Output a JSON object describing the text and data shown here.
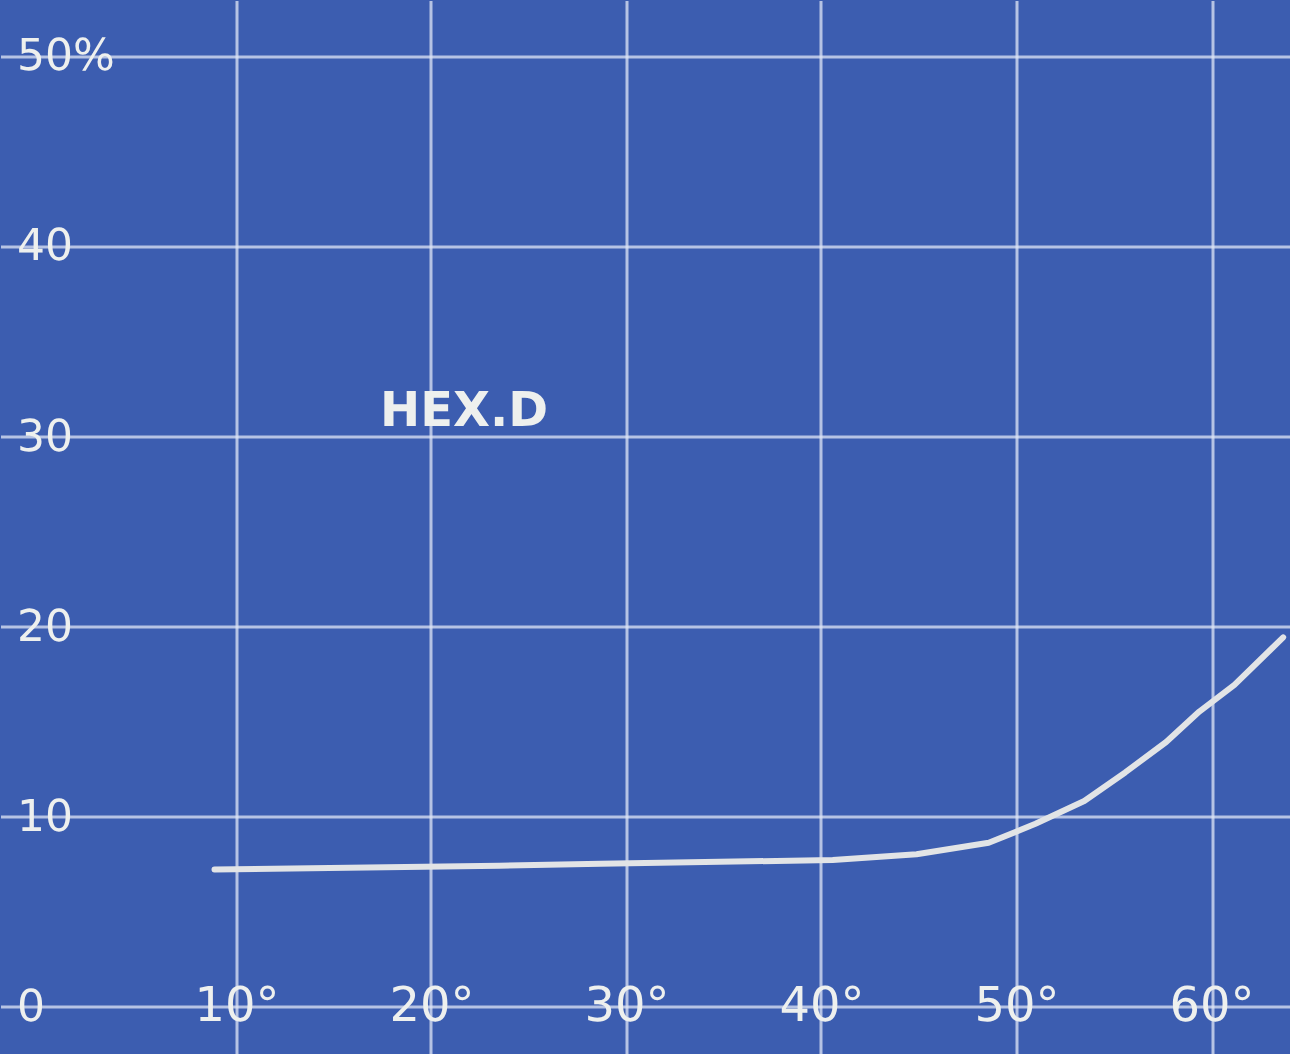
{
  "chart_data": {
    "type": "line",
    "x": [
      8.9,
      23.5,
      28.7,
      34.8,
      40.6,
      44.9,
      48.6,
      51.0,
      53.5,
      55.6,
      57.7,
      59.4,
      61.2,
      63.7
    ],
    "series": [
      {
        "color": "#e2e4e6",
        "values": [
          7.2,
          7.4,
          7.5,
          7.6,
          7.7,
          8.0,
          8.6,
          9.6,
          10.8,
          12.3,
          13.9,
          15.5,
          16.9,
          19.4
        ]
      }
    ],
    "xlim": [
      -2.1,
      64.05
    ],
    "ylim": [
      -2.5,
      52.9
    ],
    "xticks": [
      {
        "value": 10,
        "label": "10°"
      },
      {
        "value": 20,
        "label": "20°"
      },
      {
        "value": 30,
        "label": "30°"
      },
      {
        "value": 40,
        "label": "40°"
      },
      {
        "value": 50,
        "label": "50°"
      },
      {
        "value": 60,
        "label": "60°"
      }
    ],
    "yticks": [
      0,
      10,
      20,
      30,
      40,
      {
        "value": 50,
        "label": "50%"
      }
    ],
    "annotations": [
      "HEX.D"
    ],
    "grid": true,
    "marker": "none",
    "line_style": "solid"
  }
}
